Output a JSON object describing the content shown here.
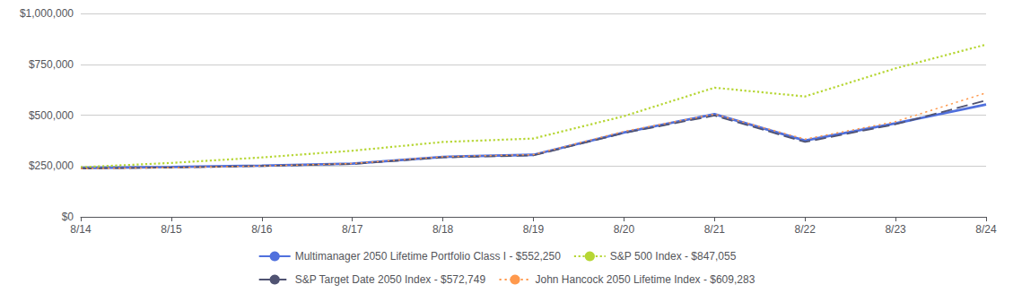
{
  "chart_data": {
    "type": "line",
    "categories": [
      "8/14",
      "8/15",
      "8/16",
      "8/17",
      "8/18",
      "8/19",
      "8/20",
      "8/21",
      "8/22",
      "8/23",
      "8/24"
    ],
    "series": [
      {
        "name": "Multimanager 2050 Lifetime Portfolio Class I - $552,250",
        "line_style": "solid",
        "values": [
          240000,
          245000,
          252000,
          262000,
          295000,
          305000,
          415000,
          505000,
          375000,
          460000,
          552250
        ]
      },
      {
        "name": "S&P 500 Index - $847,055",
        "line_style": "densely_dotted",
        "values": [
          244000,
          265000,
          292000,
          325000,
          368000,
          385000,
          495000,
          635000,
          592000,
          730000,
          847055
        ]
      },
      {
        "name": "S&P Target Date 2050 Index - $572,749",
        "line_style": "dashed",
        "values": [
          238000,
          242000,
          250000,
          260000,
          292000,
          302000,
          412000,
          498000,
          368000,
          455000,
          572749
        ]
      },
      {
        "name": "John Hancock 2050 Lifetime Index - $609,283",
        "line_style": "fine_dotted",
        "values": [
          237000,
          242000,
          250000,
          262000,
          296000,
          306000,
          420000,
          505000,
          382000,
          468000,
          609283
        ]
      }
    ],
    "ylim": [
      0,
      1000000
    ],
    "yticks": [
      {
        "value": 0,
        "label": "$0"
      },
      {
        "value": 250000,
        "label": "$250,000"
      },
      {
        "value": 500000,
        "label": "$500,000"
      },
      {
        "value": 750000,
        "label": "$750,000"
      },
      {
        "value": 1000000,
        "label": "$1,000,000"
      }
    ],
    "grid": true,
    "legend": "bottom"
  }
}
